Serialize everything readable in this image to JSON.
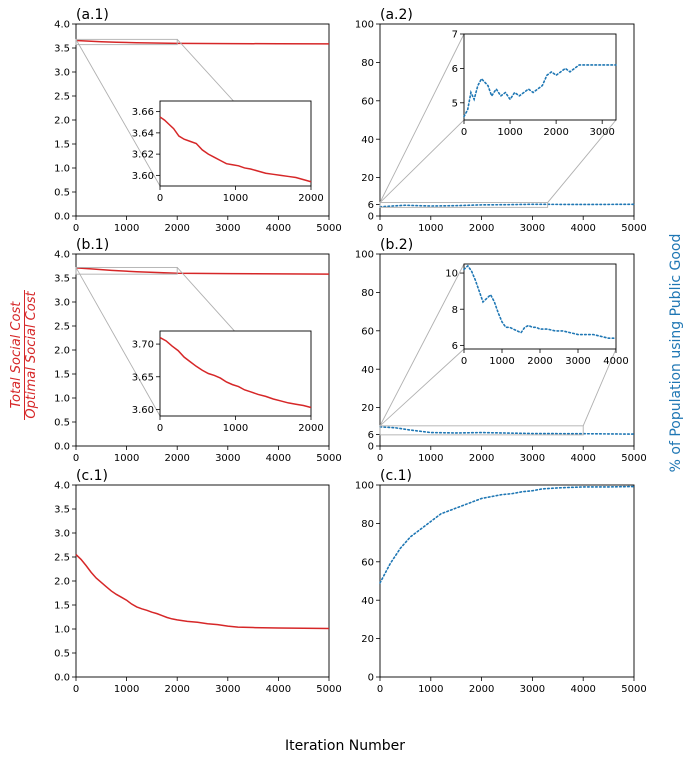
{
  "figure": {
    "xlabel": "Iteration Number",
    "left_ylabel_numerator": "Total Social Cost",
    "left_ylabel_denominator": "Optimal Social Cost",
    "right_ylabel": "% of Population using Public Good",
    "colors": {
      "cost": "#d62728",
      "pop": "#1f77b4",
      "zoom": "#b0b0b0"
    }
  },
  "chart_data": [
    {
      "type": "line",
      "title": "(a.1)",
      "series_name": "Total Social Cost / Optimal Social Cost",
      "xlim": [
        0,
        5000
      ],
      "ylim": [
        0,
        4.0
      ],
      "xticks": [
        0,
        1000,
        2000,
        3000,
        4000,
        5000
      ],
      "yticks": [
        0.0,
        0.5,
        1.0,
        1.5,
        2.0,
        2.5,
        3.0,
        3.5,
        4.0
      ],
      "x": [
        0,
        200,
        500,
        800,
        1200,
        2000,
        3000,
        4000,
        5000
      ],
      "y": [
        3.655,
        3.645,
        3.63,
        3.62,
        3.61,
        3.597,
        3.592,
        3.588,
        3.585
      ],
      "line_style": "solid",
      "inset": {
        "xlim": [
          0,
          2000
        ],
        "ylim": [
          3.59,
          3.67
        ],
        "xticks": [
          0,
          1000,
          2000
        ],
        "yticks": [
          3.6,
          3.62,
          3.64,
          3.66
        ],
        "x": [
          0,
          60,
          120,
          180,
          250,
          320,
          400,
          480,
          560,
          640,
          720,
          800,
          880,
          960,
          1040,
          1120,
          1200,
          1300,
          1400,
          1500,
          1600,
          1700,
          1800,
          1900,
          2000
        ],
        "y": [
          3.655,
          3.652,
          3.648,
          3.644,
          3.637,
          3.634,
          3.632,
          3.63,
          3.624,
          3.62,
          3.617,
          3.614,
          3.611,
          3.61,
          3.609,
          3.607,
          3.606,
          3.604,
          3.602,
          3.601,
          3.6,
          3.599,
          3.598,
          3.596,
          3.594
        ]
      }
    },
    {
      "type": "line",
      "title": "(a.2)",
      "series_name": "% of Population using Public Good",
      "xlim": [
        0,
        5000
      ],
      "ylim": [
        0,
        100
      ],
      "xticks": [
        0,
        1000,
        2000,
        3000,
        4000,
        5000
      ],
      "yticks": [
        0,
        6,
        20,
        40,
        60,
        80,
        100
      ],
      "x": [
        0,
        300,
        500,
        1000,
        1500,
        2000,
        2500,
        3000,
        4000,
        5000
      ],
      "y": [
        4.8,
        5.3,
        5.6,
        5.2,
        5.4,
        5.8,
        5.9,
        6.1,
        6.0,
        6.1
      ],
      "line_style": "dotted",
      "inset": {
        "xlim": [
          0,
          3300
        ],
        "ylim": [
          4.5,
          7
        ],
        "xticks": [
          0,
          1000,
          2000,
          3000
        ],
        "yticks": [
          5,
          6,
          7
        ],
        "x": [
          0,
          80,
          150,
          220,
          300,
          380,
          450,
          520,
          600,
          700,
          800,
          900,
          1000,
          1100,
          1200,
          1300,
          1400,
          1500,
          1600,
          1700,
          1800,
          1900,
          2000,
          2100,
          2200,
          2300,
          2400,
          2500,
          2700,
          2900,
          3100,
          3300
        ],
        "y": [
          4.6,
          4.8,
          5.3,
          5.1,
          5.5,
          5.7,
          5.6,
          5.5,
          5.2,
          5.4,
          5.2,
          5.3,
          5.1,
          5.3,
          5.2,
          5.3,
          5.4,
          5.3,
          5.4,
          5.5,
          5.8,
          5.9,
          5.8,
          5.9,
          6.0,
          5.9,
          6.0,
          6.1,
          6.1,
          6.1,
          6.1,
          6.1
        ]
      }
    },
    {
      "type": "line",
      "title": "(b.1)",
      "series_name": "Total Social Cost / Optimal Social Cost",
      "xlim": [
        0,
        5000
      ],
      "ylim": [
        0,
        4.0
      ],
      "xticks": [
        0,
        1000,
        2000,
        3000,
        4000,
        5000
      ],
      "yticks": [
        0.0,
        0.5,
        1.0,
        1.5,
        2.0,
        2.5,
        3.0,
        3.5,
        4.0
      ],
      "x": [
        0,
        300,
        700,
        1200,
        2000,
        3000,
        4000,
        5000
      ],
      "y": [
        3.71,
        3.69,
        3.66,
        3.63,
        3.6,
        3.59,
        3.585,
        3.58
      ],
      "line_style": "solid",
      "inset": {
        "xlim": [
          0,
          2000
        ],
        "ylim": [
          3.59,
          3.72
        ],
        "xticks": [
          0,
          1000,
          2000
        ],
        "yticks": [
          3.6,
          3.65,
          3.7
        ],
        "x": [
          0,
          80,
          160,
          240,
          320,
          400,
          480,
          560,
          640,
          720,
          800,
          880,
          960,
          1040,
          1120,
          1200,
          1300,
          1400,
          1500,
          1600,
          1700,
          1800,
          1900,
          2000
        ],
        "y": [
          3.71,
          3.705,
          3.697,
          3.69,
          3.68,
          3.673,
          3.666,
          3.66,
          3.655,
          3.652,
          3.648,
          3.642,
          3.638,
          3.635,
          3.63,
          3.627,
          3.623,
          3.62,
          3.616,
          3.613,
          3.61,
          3.608,
          3.606,
          3.603
        ]
      }
    },
    {
      "type": "line",
      "title": "(b.2)",
      "series_name": "% of Population using Public Good",
      "xlim": [
        0,
        5000
      ],
      "ylim": [
        0,
        100
      ],
      "xticks": [
        0,
        1000,
        2000,
        3000,
        4000,
        5000
      ],
      "yticks": [
        0,
        6,
        20,
        40,
        60,
        80,
        100
      ],
      "x": [
        0,
        300,
        600,
        1000,
        1500,
        2000,
        3000,
        4000,
        5000
      ],
      "y": [
        10.0,
        9.5,
        8.3,
        7.0,
        6.8,
        7.0,
        6.5,
        6.4,
        6.2
      ],
      "line_style": "dotted",
      "inset": {
        "xlim": [
          0,
          4000
        ],
        "ylim": [
          5.8,
          10.5
        ],
        "xticks": [
          0,
          1000,
          2000,
          3000,
          4000
        ],
        "yticks": [
          6,
          8,
          10
        ],
        "x": [
          0,
          100,
          200,
          300,
          400,
          500,
          600,
          700,
          800,
          900,
          1000,
          1100,
          1200,
          1300,
          1400,
          1500,
          1600,
          1700,
          1800,
          1900,
          2000,
          2200,
          2400,
          2600,
          2800,
          3000,
          3200,
          3400,
          3600,
          3800,
          4000
        ],
        "y": [
          10.2,
          10.4,
          10.1,
          9.6,
          9.0,
          8.4,
          8.6,
          8.8,
          8.4,
          7.8,
          7.3,
          7.0,
          7.0,
          6.9,
          6.8,
          6.7,
          7.0,
          7.1,
          7.0,
          7.0,
          6.9,
          6.9,
          6.8,
          6.8,
          6.7,
          6.6,
          6.6,
          6.6,
          6.5,
          6.4,
          6.4
        ]
      }
    },
    {
      "type": "line",
      "title": "(c.1)",
      "series_name": "Total Social Cost / Optimal Social Cost",
      "xlim": [
        0,
        5000
      ],
      "ylim": [
        0,
        4.0
      ],
      "xticks": [
        0,
        1000,
        2000,
        3000,
        4000,
        5000
      ],
      "yticks": [
        0.0,
        0.5,
        1.0,
        1.5,
        2.0,
        2.5,
        3.0,
        3.5,
        4.0
      ],
      "x": [
        0,
        100,
        200,
        300,
        400,
        500,
        600,
        700,
        800,
        900,
        1000,
        1100,
        1200,
        1300,
        1400,
        1500,
        1600,
        1700,
        1800,
        1900,
        2000,
        2200,
        2400,
        2600,
        2800,
        3000,
        3200,
        3500,
        4000,
        4500,
        5000
      ],
      "y": [
        2.55,
        2.45,
        2.32,
        2.18,
        2.06,
        1.97,
        1.88,
        1.79,
        1.72,
        1.66,
        1.6,
        1.52,
        1.46,
        1.42,
        1.39,
        1.35,
        1.32,
        1.28,
        1.24,
        1.21,
        1.19,
        1.16,
        1.14,
        1.11,
        1.09,
        1.06,
        1.04,
        1.03,
        1.02,
        1.015,
        1.01
      ],
      "line_style": "solid"
    },
    {
      "type": "line",
      "title": "(c.1)",
      "series_name": "% of Population using Public Good",
      "xlim": [
        0,
        5000
      ],
      "ylim": [
        0,
        100
      ],
      "xticks": [
        0,
        1000,
        2000,
        3000,
        4000,
        5000
      ],
      "yticks": [
        0,
        20,
        40,
        60,
        80,
        100
      ],
      "x": [
        0,
        100,
        200,
        300,
        400,
        500,
        600,
        700,
        800,
        900,
        1000,
        1100,
        1200,
        1400,
        1600,
        1800,
        2000,
        2200,
        2400,
        2600,
        2800,
        3000,
        3200,
        3500,
        4000,
        4500,
        5000
      ],
      "y": [
        49,
        54,
        59,
        63,
        67,
        70,
        73,
        75,
        77,
        79,
        81,
        83,
        85,
        87,
        89,
        91,
        93,
        94,
        95,
        95.5,
        96.5,
        97,
        98,
        98.5,
        99,
        99,
        99.2
      ],
      "line_style": "dotted"
    }
  ]
}
